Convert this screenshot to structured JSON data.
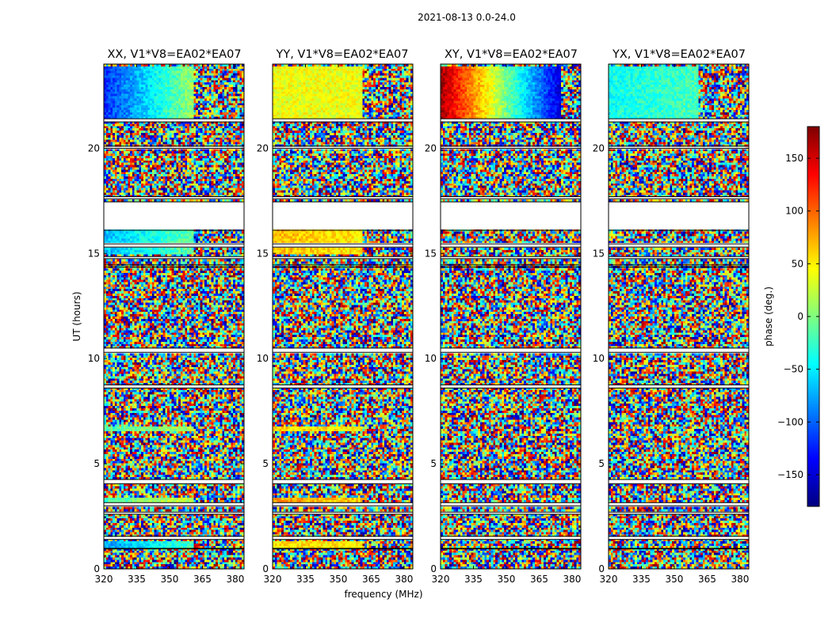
{
  "figure": {
    "suptitle": "2021-08-13 0.0-24.0",
    "xlabel": "frequency (MHz)",
    "ylabel": "UT (hours)",
    "colorbar_label": "phase (deg.)",
    "colorbar_tick_labels": [
      "150",
      "100",
      "50",
      "0",
      "−50",
      "−100",
      "−150"
    ],
    "colorbar_ticks": [
      150,
      100,
      50,
      0,
      -50,
      -100,
      -150
    ],
    "colorbar_range": [
      -180,
      180
    ],
    "colormap": [
      "#00007f",
      "#0000ff",
      "#007fff",
      "#00ffff",
      "#7fff7f",
      "#ffff00",
      "#ff7f00",
      "#ff0000",
      "#7f0000"
    ],
    "x_tick_labels": [
      "320",
      "335",
      "350",
      "365",
      "380"
    ],
    "y_tick_labels": [
      "0",
      "5",
      "10",
      "15",
      "20"
    ]
  },
  "chart_data": [
    {
      "type": "heatmap",
      "title": "XX, V1*V8=EA02*EA07",
      "xlabel": "frequency (MHz)",
      "ylabel": "UT (hours)",
      "xlim": [
        320,
        384
      ],
      "ylim": [
        0,
        24
      ],
      "x_ticks": [
        320,
        335,
        350,
        365,
        380
      ],
      "y_ticks": [
        0,
        5,
        10,
        15,
        20
      ],
      "value_label": "phase (deg.)",
      "value_range": [
        -180,
        180
      ],
      "coherent_bands": [
        {
          "ut": [
            21.4,
            23.9
          ],
          "phase_start": -120,
          "phase_end": 10,
          "freq_cut": 361
        },
        {
          "ut": [
            14.9,
            16.1
          ],
          "phase_start": -70,
          "phase_end": -10,
          "freq_cut": 361
        },
        {
          "ut": [
            6.5,
            6.8
          ],
          "phase_start": -20,
          "phase_end": 20,
          "freq_cut": 361
        },
        {
          "ut": [
            3.2,
            3.4
          ],
          "phase_start": -20,
          "phase_end": 30,
          "freq_cut": 361
        },
        {
          "ut": [
            0.95,
            1.35
          ],
          "phase_start": -80,
          "phase_end": -20,
          "freq_cut": 361
        }
      ]
    },
    {
      "type": "heatmap",
      "title": "YY, V1*V8=EA02*EA07",
      "xlabel": "frequency (MHz)",
      "ylabel": "UT (hours)",
      "xlim": [
        320,
        384
      ],
      "ylim": [
        0,
        24
      ],
      "x_ticks": [
        320,
        335,
        350,
        365,
        380
      ],
      "y_ticks": [
        0,
        5,
        10,
        15,
        20
      ],
      "value_label": "phase (deg.)",
      "value_range": [
        -180,
        180
      ],
      "coherent_bands": [
        {
          "ut": [
            21.4,
            23.9
          ],
          "phase_start": 40,
          "phase_end": 40,
          "freq_cut": 361
        },
        {
          "ut": [
            14.9,
            16.1
          ],
          "phase_start": 70,
          "phase_end": 50,
          "freq_cut": 361
        },
        {
          "ut": [
            6.5,
            6.8
          ],
          "phase_start": 60,
          "phase_end": 50,
          "freq_cut": 361
        },
        {
          "ut": [
            3.2,
            3.4
          ],
          "phase_start": 80,
          "phase_end": 60,
          "freq_cut": 361
        },
        {
          "ut": [
            0.95,
            1.35
          ],
          "phase_start": 55,
          "phase_end": 50,
          "freq_cut": 361
        }
      ]
    },
    {
      "type": "heatmap",
      "title": "XY, V1*V8=EA02*EA07",
      "xlabel": "frequency (MHz)",
      "ylabel": "UT (hours)",
      "xlim": [
        320,
        384
      ],
      "ylim": [
        0,
        24
      ],
      "x_ticks": [
        320,
        335,
        350,
        365,
        380
      ],
      "y_ticks": [
        0,
        5,
        10,
        15,
        20
      ],
      "value_label": "phase (deg.)",
      "value_range": [
        -180,
        180
      ],
      "coherent_bands": [
        {
          "ut": [
            21.4,
            23.9
          ],
          "phase_start": 170,
          "phase_end": -150,
          "freq_cut": 375
        }
      ]
    },
    {
      "type": "heatmap",
      "title": "YX, V1*V8=EA02*EA07",
      "xlabel": "frequency (MHz)",
      "ylabel": "UT (hours)",
      "xlim": [
        320,
        384
      ],
      "ylim": [
        0,
        24
      ],
      "x_ticks": [
        320,
        335,
        350,
        365,
        380
      ],
      "y_ticks": [
        0,
        5,
        10,
        15,
        20
      ],
      "value_label": "phase (deg.)",
      "value_range": [
        -180,
        180
      ],
      "coherent_bands": [
        {
          "ut": [
            21.4,
            23.9
          ],
          "phase_start": -40,
          "phase_end": -20,
          "freq_cut": 361
        }
      ]
    }
  ],
  "flagged_ut_ranges": [
    [
      21.25,
      21.4
    ],
    [
      20.0,
      20.1
    ],
    [
      17.6,
      17.7
    ],
    [
      16.1,
      17.45
    ],
    [
      15.3,
      15.45
    ],
    [
      14.75,
      14.85
    ],
    [
      14.35,
      14.45
    ],
    [
      10.3,
      10.5
    ],
    [
      8.6,
      8.75
    ],
    [
      4.05,
      4.25
    ],
    [
      3.0,
      3.15
    ],
    [
      2.6,
      2.7
    ],
    [
      1.4,
      1.55
    ],
    [
      0.95,
      0.98
    ]
  ]
}
